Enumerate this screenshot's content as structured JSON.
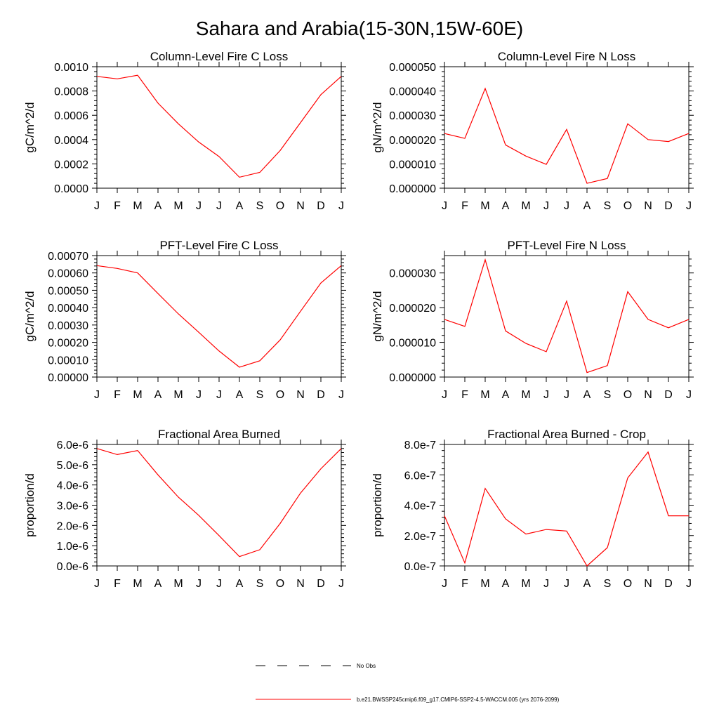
{
  "figure": {
    "title": "Sahara and Arabia(15-30N,15W-60E)"
  },
  "legend": {
    "items": [
      {
        "label": "No Obs",
        "style": "dashed",
        "color": "#000000"
      },
      {
        "label": "b.e21.BWSSP245cmip6.f09_g17.CMIP6-SSP2-4.5-WACCM.005 (yrs 2076-2099)",
        "style": "solid",
        "color": "#ff0000"
      }
    ]
  },
  "colors": {
    "series": "#ff0000",
    "axis": "#000000"
  },
  "chart_data": [
    {
      "type": "line",
      "title": "Column-Level Fire C Loss",
      "ylabel": "gC/m^2/d",
      "xlabel": "",
      "categories": [
        "J",
        "F",
        "M",
        "A",
        "M",
        "J",
        "J",
        "A",
        "S",
        "O",
        "N",
        "D",
        "J"
      ],
      "ylim": [
        0,
        0.001
      ],
      "yticks": [
        "0.0000",
        "0.0002",
        "0.0004",
        "0.0006",
        "0.0008",
        "0.0010"
      ],
      "ytick_values": [
        0,
        0.0002,
        0.0004,
        0.0006,
        0.0008,
        0.001
      ],
      "series": [
        {
          "values": [
            0.00092,
            0.0009,
            0.00093,
            0.0007,
            0.00053,
            0.00038,
            0.00026,
            9e-05,
            0.00013,
            0.00031,
            0.00054,
            0.00077,
            0.00092
          ]
        }
      ]
    },
    {
      "type": "line",
      "title": "Column-Level Fire N Loss",
      "ylabel": "gN/m^2/d",
      "xlabel": "",
      "categories": [
        "J",
        "F",
        "M",
        "A",
        "M",
        "J",
        "J",
        "A",
        "S",
        "O",
        "N",
        "D",
        "J"
      ],
      "ylim": [
        0,
        5e-05
      ],
      "yticks": [
        "0.000000",
        "0.000010",
        "0.000020",
        "0.000030",
        "0.000040",
        "0.000050"
      ],
      "ytick_values": [
        0,
        1e-05,
        2e-05,
        3e-05,
        4e-05,
        5e-05
      ],
      "series": [
        {
          "values": [
            2.25e-05,
            2.05e-05,
            4.1e-05,
            1.78e-05,
            1.32e-05,
            9.8e-06,
            2.42e-05,
            2e-06,
            4e-06,
            2.65e-05,
            2e-05,
            1.92e-05,
            2.25e-05
          ]
        }
      ]
    },
    {
      "type": "line",
      "title": "PFT-Level Fire C Loss",
      "ylabel": "gC/m^2/d",
      "xlabel": "",
      "categories": [
        "J",
        "F",
        "M",
        "A",
        "M",
        "J",
        "J",
        "A",
        "S",
        "O",
        "N",
        "D",
        "J"
      ],
      "ylim": [
        0,
        0.0007
      ],
      "yticks": [
        "0.00000",
        "0.00010",
        "0.00020",
        "0.00030",
        "0.00040",
        "0.00050",
        "0.00060",
        "0.00070"
      ],
      "ytick_values": [
        0,
        0.0001,
        0.0002,
        0.0003,
        0.0004,
        0.0005,
        0.0006,
        0.0007
      ],
      "series": [
        {
          "values": [
            0.000642,
            0.000626,
            0.0006,
            0.000481,
            0.000364,
            0.000258,
            0.00015,
            5.7e-05,
            9.4e-05,
            0.000214,
            0.000379,
            0.000542,
            0.000642
          ]
        }
      ]
    },
    {
      "type": "line",
      "title": "PFT-Level Fire N Loss",
      "ylabel": "gN/m^2/d",
      "xlabel": "",
      "categories": [
        "J",
        "F",
        "M",
        "A",
        "M",
        "J",
        "J",
        "A",
        "S",
        "O",
        "N",
        "D",
        "J"
      ],
      "ylim": [
        0,
        3.5e-05
      ],
      "yticks": [
        "0.000000",
        "0.000010",
        "0.000020",
        "0.000030"
      ],
      "ytick_values": [
        0,
        1e-05,
        2e-05,
        3e-05
      ],
      "series": [
        {
          "values": [
            1.66e-05,
            1.46e-05,
            3.38e-05,
            1.33e-05,
            9.7e-06,
            7.3e-06,
            2.19e-05,
            1.3e-06,
            3.3e-06,
            2.46e-05,
            1.66e-05,
            1.42e-05,
            1.66e-05
          ]
        }
      ]
    },
    {
      "type": "line",
      "title": "Fractional Area Burned",
      "ylabel": "proportion/d",
      "xlabel": "",
      "categories": [
        "J",
        "F",
        "M",
        "A",
        "M",
        "J",
        "J",
        "A",
        "S",
        "O",
        "N",
        "D",
        "J"
      ],
      "ylim": [
        0,
        6e-06
      ],
      "yticks": [
        "0.0e-6",
        "1.0e-6",
        "2.0e-6",
        "3.0e-6",
        "4.0e-6",
        "5.0e-6",
        "6.0e-6"
      ],
      "ytick_values": [
        0,
        1e-06,
        2e-06,
        3e-06,
        4e-06,
        5e-06,
        6e-06
      ],
      "series": [
        {
          "values": [
            5.8e-06,
            5.5e-06,
            5.7e-06,
            4.5e-06,
            3.4e-06,
            2.5e-06,
            1.5e-06,
            4.6e-07,
            8e-07,
            2.1e-06,
            3.6e-06,
            4.8e-06,
            5.8e-06
          ]
        }
      ]
    },
    {
      "type": "line",
      "title": "Fractional Area Burned - Crop",
      "ylabel": "proportion/d",
      "xlabel": "",
      "categories": [
        "J",
        "F",
        "M",
        "A",
        "M",
        "J",
        "J",
        "A",
        "S",
        "O",
        "N",
        "D",
        "J"
      ],
      "ylim": [
        0,
        8e-07
      ],
      "yticks": [
        "0.0e-7",
        "2.0e-7",
        "4.0e-7",
        "6.0e-7",
        "8.0e-7"
      ],
      "ytick_values": [
        0,
        2e-07,
        4e-07,
        6e-07,
        8e-07
      ],
      "series": [
        {
          "values": [
            3.3e-07,
            2e-08,
            5.1e-07,
            3.1e-07,
            2.1e-07,
            2.4e-07,
            2.3e-07,
            0.0,
            1.2e-07,
            5.8e-07,
            7.5e-07,
            3.3e-07,
            3.3e-07
          ]
        }
      ]
    }
  ]
}
